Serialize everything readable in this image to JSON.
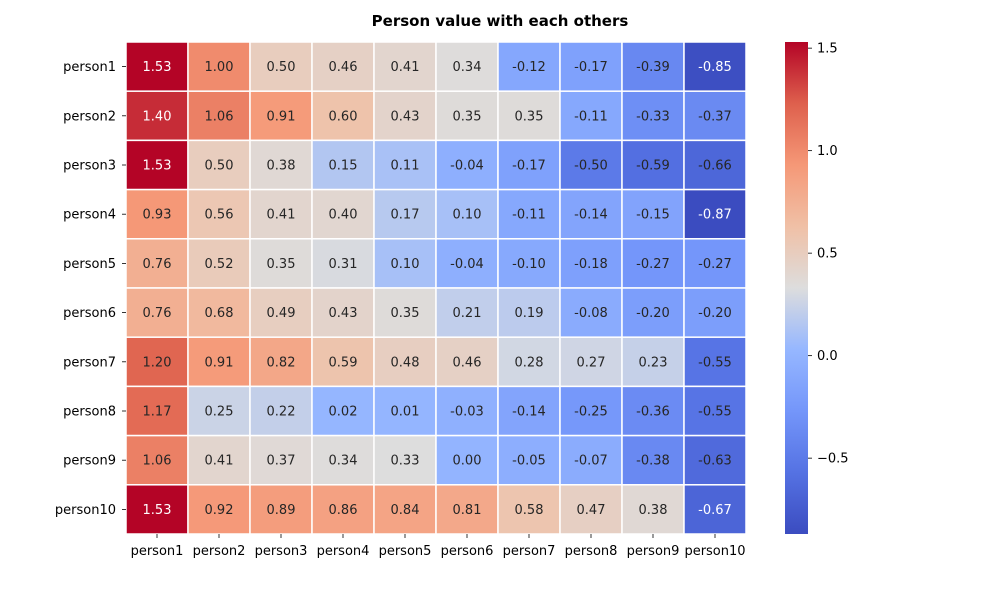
{
  "chart_data": {
    "type": "heatmap",
    "title": "Person value with each others",
    "xlabel": "",
    "ylabel": "",
    "x_categories": [
      "person1",
      "person2",
      "person3",
      "person4",
      "person5",
      "person6",
      "person7",
      "person8",
      "person9",
      "person10"
    ],
    "y_categories": [
      "person1",
      "person2",
      "person3",
      "person4",
      "person5",
      "person6",
      "person7",
      "person8",
      "person9",
      "person10"
    ],
    "values": [
      [
        1.53,
        1.0,
        0.5,
        0.46,
        0.41,
        0.34,
        -0.12,
        -0.17,
        -0.39,
        -0.85
      ],
      [
        1.4,
        1.06,
        0.91,
        0.6,
        0.43,
        0.35,
        0.35,
        -0.11,
        -0.33,
        -0.37
      ],
      [
        1.53,
        0.5,
        0.38,
        0.15,
        0.11,
        -0.04,
        -0.17,
        -0.5,
        -0.59,
        -0.66
      ],
      [
        0.93,
        0.56,
        0.41,
        0.4,
        0.17,
        0.1,
        -0.11,
        -0.14,
        -0.15,
        -0.87
      ],
      [
        0.76,
        0.52,
        0.35,
        0.31,
        0.1,
        -0.04,
        -0.1,
        -0.18,
        -0.27,
        -0.27
      ],
      [
        0.76,
        0.68,
        0.49,
        0.43,
        0.35,
        0.21,
        0.19,
        -0.08,
        -0.2,
        -0.2
      ],
      [
        1.2,
        0.91,
        0.82,
        0.59,
        0.48,
        0.46,
        0.28,
        0.27,
        0.23,
        -0.55
      ],
      [
        1.17,
        0.25,
        0.22,
        0.02,
        0.01,
        -0.03,
        -0.14,
        -0.25,
        -0.36,
        -0.55
      ],
      [
        1.06,
        0.41,
        0.37,
        0.34,
        0.33,
        0.0,
        -0.05,
        -0.07,
        -0.38,
        -0.63
      ],
      [
        1.53,
        0.92,
        0.89,
        0.86,
        0.84,
        0.81,
        0.58,
        0.47,
        0.38,
        -0.67
      ]
    ],
    "colormap": "coolwarm",
    "color_range": [
      -0.87,
      1.53
    ],
    "colorbar_ticks": [
      1.5,
      1.0,
      0.5,
      0.0,
      -0.5
    ],
    "colorbar_tick_labels": [
      "1.5",
      "1.0",
      "0.5",
      "0.0",
      "−0.5"
    ],
    "value_format": "2 decimals",
    "cell_border_color": "#ffffff",
    "legend": "colorbar-right",
    "grid": false
  }
}
